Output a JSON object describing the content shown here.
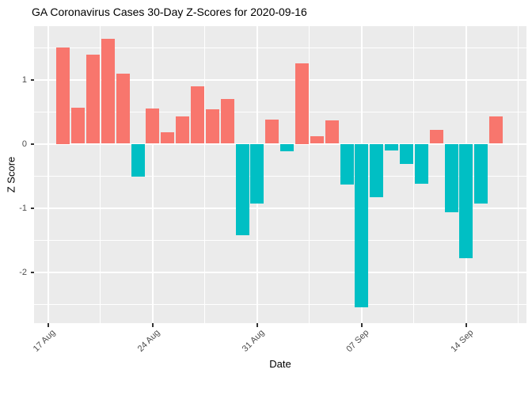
{
  "title": "GA Coronavirus Cases 30-Day Z-Scores for 2020-09-16",
  "chart_data": {
    "type": "bar",
    "title": "GA Coronavirus Cases 30-Day Z-Scores for 2020-09-16",
    "xlabel": "Date",
    "ylabel": "Z Score",
    "legend": false,
    "grid": true,
    "x_start": "2020-08-17",
    "ylim": [
      -2.8,
      1.83
    ],
    "x_ticks": [
      {
        "label": "17 Aug",
        "day": 0
      },
      {
        "label": "24 Aug",
        "day": 7
      },
      {
        "label": "31 Aug",
        "day": 14
      },
      {
        "label": "07 Sep",
        "day": 21
      },
      {
        "label": "14 Sep",
        "day": 28
      }
    ],
    "x_minor_days": [
      3.5,
      10.5,
      17.5,
      24.5,
      31.5
    ],
    "y_ticks": [
      {
        "label": "1",
        "value": 1
      },
      {
        "label": "0",
        "value": 0
      },
      {
        "label": "-1",
        "value": -1
      },
      {
        "label": "-2",
        "value": -2
      }
    ],
    "y_minor": [
      1.5,
      0.5,
      -0.5,
      -1.5,
      -2.5
    ],
    "bars": [
      {
        "date": "2020-08-18",
        "z": 1.5
      },
      {
        "date": "2020-08-19",
        "z": 0.56
      },
      {
        "date": "2020-08-20",
        "z": 1.39
      },
      {
        "date": "2020-08-21",
        "z": 1.63
      },
      {
        "date": "2020-08-22",
        "z": 1.09
      },
      {
        "date": "2020-08-23",
        "z": -0.51
      },
      {
        "date": "2020-08-24",
        "z": 0.55
      },
      {
        "date": "2020-08-25",
        "z": 0.18
      },
      {
        "date": "2020-08-26",
        "z": 0.43
      },
      {
        "date": "2020-08-27",
        "z": 0.89
      },
      {
        "date": "2020-08-28",
        "z": 0.54
      },
      {
        "date": "2020-08-29",
        "z": 0.7
      },
      {
        "date": "2020-08-30",
        "z": -1.43
      },
      {
        "date": "2020-08-31",
        "z": -0.93
      },
      {
        "date": "2020-09-01",
        "z": 0.38
      },
      {
        "date": "2020-09-02",
        "z": -0.12
      },
      {
        "date": "2020-09-03",
        "z": 1.25
      },
      {
        "date": "2020-09-04",
        "z": 0.12
      },
      {
        "date": "2020-09-05",
        "z": 0.36
      },
      {
        "date": "2020-09-06",
        "z": -0.63
      },
      {
        "date": "2020-09-07",
        "z": -2.55
      },
      {
        "date": "2020-09-08",
        "z": -0.83
      },
      {
        "date": "2020-09-09",
        "z": -0.1
      },
      {
        "date": "2020-09-10",
        "z": -0.31
      },
      {
        "date": "2020-09-11",
        "z": -0.62
      },
      {
        "date": "2020-09-12",
        "z": 0.22
      },
      {
        "date": "2020-09-13",
        "z": -1.07
      },
      {
        "date": "2020-09-14",
        "z": -1.79
      },
      {
        "date": "2020-09-15",
        "z": -0.93
      },
      {
        "date": "2020-09-16",
        "z": 0.42
      }
    ],
    "colors": {
      "positive": "#F8766D",
      "negative": "#00BFC4",
      "panel_bg": "#EBEBEB",
      "gridline": "#FFFFFF",
      "axis_text": "#4D4D4D",
      "tick_mark": "#333333",
      "title_text": "#000000"
    }
  }
}
